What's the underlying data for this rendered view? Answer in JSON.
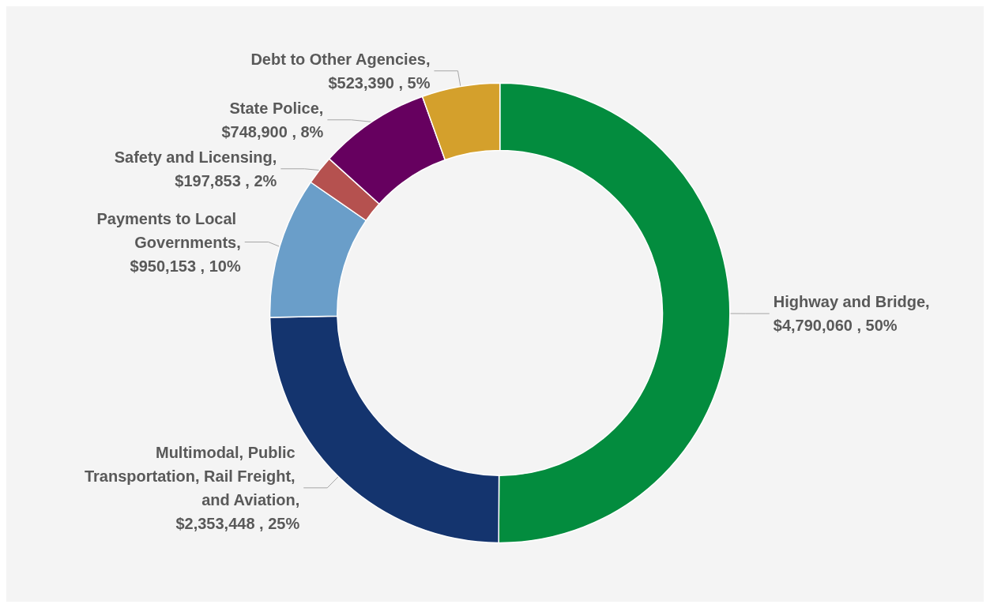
{
  "chart_data": {
    "type": "donut",
    "categories": [
      "Highway and Bridge",
      "Multimodal, Public Transportation, Rail Freight, and Aviation",
      "Payments to Local Governments",
      "Safety and Licensing",
      "State Police",
      "Debt to Other Agencies"
    ],
    "values": [
      4790060,
      2353448,
      950153,
      197853,
      748900,
      523390
    ],
    "value_labels": [
      ", $4,790,060 , 50%",
      ", $2,353,448 , 25%",
      ", $950,153 , 10%",
      ", $197,853 , 2%",
      ", $748,900 , 8%",
      ", $523,390 , 5%"
    ],
    "colors": [
      "#038c3e",
      "#14346e",
      "#6a9ec9",
      "#b5514f",
      "#66005f",
      "#d4a02c"
    ],
    "legend": false
  }
}
